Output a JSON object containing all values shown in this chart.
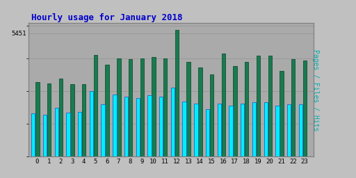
{
  "title": "Hourly usage for January 2018",
  "ylabel_right": "Pages / Files / Hits",
  "hours": [
    0,
    1,
    2,
    3,
    4,
    5,
    6,
    7,
    8,
    9,
    10,
    11,
    12,
    13,
    14,
    15,
    16,
    17,
    18,
    19,
    20,
    21,
    22,
    23
  ],
  "hits": [
    3300,
    3250,
    3450,
    3200,
    3200,
    4500,
    4050,
    4350,
    4300,
    4350,
    4400,
    4350,
    5600,
    4200,
    3950,
    3650,
    4550,
    4000,
    4200,
    4450,
    4450,
    3800,
    4300,
    4250
  ],
  "pages": [
    1900,
    1850,
    2150,
    1950,
    1980,
    2900,
    2300,
    2750,
    2650,
    2600,
    2700,
    2650,
    3050,
    2450,
    2350,
    2100,
    2350,
    2250,
    2350,
    2400,
    2400,
    2250,
    2300,
    2300
  ],
  "hits_color": "#1a7a50",
  "pages_color": "#00eeff",
  "pages_edge_color": "#0055cc",
  "hits_edge_color": "#004422",
  "bg_color": "#c0c0c0",
  "plot_bg_color": "#aaaaaa",
  "title_color": "#0000cc",
  "ylabel_color": "#00aaaa",
  "grid_color": "#999999",
  "ylim": [
    0,
    5900
  ],
  "ytick_val": 5451,
  "title_fontsize": 9,
  "axis_label_fontsize": 7
}
